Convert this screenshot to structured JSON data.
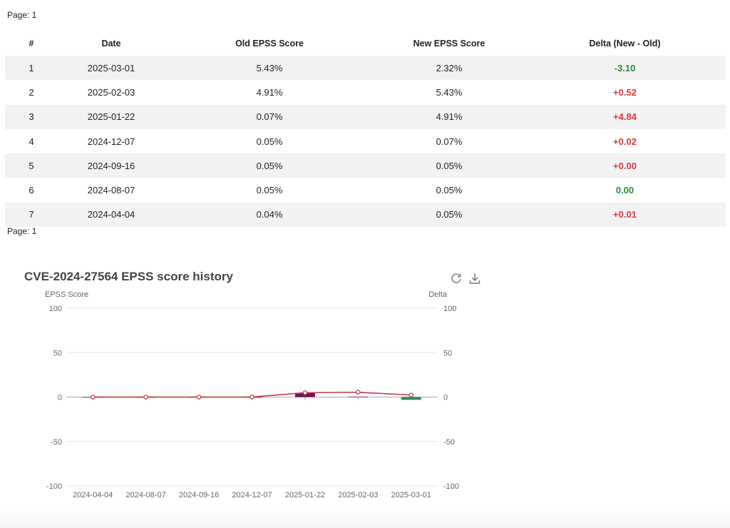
{
  "pagination": {
    "top_label": "Page: 1",
    "bottom_label": "Page: 1"
  },
  "table": {
    "headers": [
      "#",
      "Date",
      "Old EPSS Score",
      "New EPSS Score",
      "Delta (New - Old)"
    ],
    "rows": [
      {
        "num": "1",
        "date": "2025-03-01",
        "old": "5.43%",
        "new": "2.32%",
        "delta": "-3.10",
        "delta_color": "#2e8b3a"
      },
      {
        "num": "2",
        "date": "2025-02-03",
        "old": "4.91%",
        "new": "5.43%",
        "delta": "+0.52",
        "delta_color": "#d9363e"
      },
      {
        "num": "3",
        "date": "2025-01-22",
        "old": "0.07%",
        "new": "4.91%",
        "delta": "+4.84",
        "delta_color": "#d9363e"
      },
      {
        "num": "4",
        "date": "2024-12-07",
        "old": "0.05%",
        "new": "0.07%",
        "delta": "+0.02",
        "delta_color": "#d9363e"
      },
      {
        "num": "5",
        "date": "2024-09-16",
        "old": "0.05%",
        "new": "0.05%",
        "delta": "+0.00",
        "delta_color": "#d9363e"
      },
      {
        "num": "6",
        "date": "2024-08-07",
        "old": "0.05%",
        "new": "0.05%",
        "delta": "0.00",
        "delta_color": "#2e8b3a"
      },
      {
        "num": "7",
        "date": "2024-04-04",
        "old": "0.04%",
        "new": "0.05%",
        "delta": "+0.01",
        "delta_color": "#d9363e"
      }
    ]
  },
  "toolbar_icons": [
    "refresh-icon",
    "download-icon"
  ],
  "chart_data": {
    "type": "line",
    "title": "CVE-2024-27564 EPSS score history",
    "ylabel_left": "EPSS Score",
    "ylabel_right": "Delta",
    "ylim": [
      -100,
      100
    ],
    "yticks": [
      100,
      50,
      0,
      -50,
      -100
    ],
    "grid": true,
    "legend_placement": "bottom-center",
    "categories": [
      "2024-04-04",
      "2024-08-07",
      "2024-09-16",
      "2024-12-07",
      "2025-01-22",
      "2025-02-03",
      "2025-03-01"
    ],
    "series": [
      {
        "name": "EPSS Score",
        "kind": "line",
        "color": "#c23b4a",
        "values": [
          0.05,
          0.05,
          0.05,
          0.07,
          4.91,
          5.43,
          2.32
        ]
      },
      {
        "name": "Delta",
        "kind": "bar",
        "color": "#7a1060",
        "values": [
          0.01,
          0.0,
          0.0,
          0.02,
          4.84,
          0.52,
          -3.1
        ],
        "negative_color": "#2e8b57"
      }
    ]
  }
}
